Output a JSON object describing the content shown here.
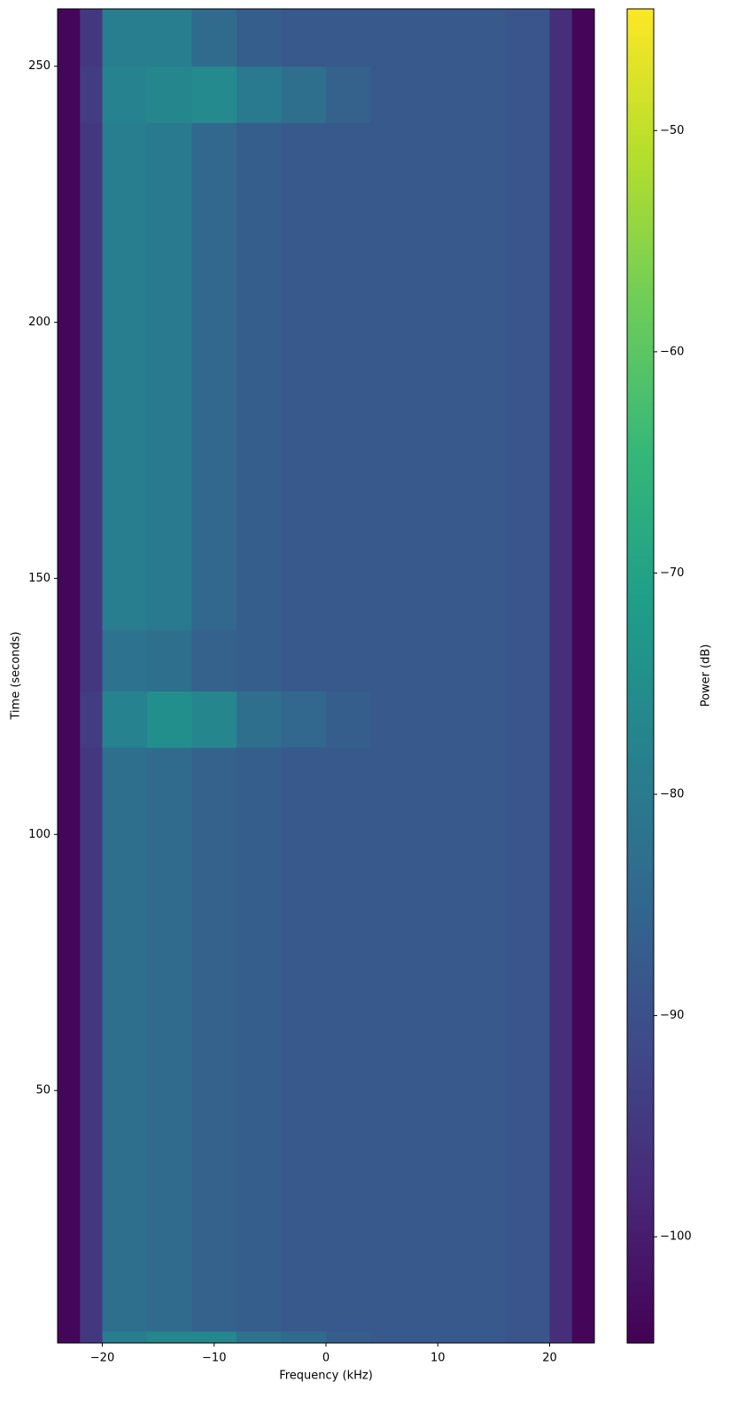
{
  "chart_data": {
    "type": "spectrogram",
    "x_label": "Frequency (kHz)",
    "y_label": "Time (seconds)",
    "colorbar_label": "Power (dB)",
    "colormap": "viridis",
    "xlim": [
      -24,
      24
    ],
    "ylim": [
      0.7,
      261.2
    ],
    "clim": [
      -104.8,
      -44.5
    ],
    "xticks": [
      {
        "value": -20,
        "label": "−20"
      },
      {
        "value": -10,
        "label": "−10"
      },
      0,
      10,
      20
    ],
    "yticks": [
      50,
      100,
      150,
      200,
      250
    ],
    "cticks": [
      {
        "value": -100,
        "label": "−100"
      },
      {
        "value": -90,
        "label": "−90"
      },
      {
        "value": -80,
        "label": "−80"
      },
      {
        "value": -70,
        "label": "−70"
      },
      {
        "value": -60,
        "label": "−60"
      },
      {
        "value": -50,
        "label": "−50"
      }
    ],
    "x_edges": [
      -24,
      -22,
      -20,
      -16,
      -12,
      -8,
      -4,
      0,
      4,
      8,
      12,
      16,
      20,
      22,
      24
    ],
    "y_edges": [
      0.7,
      3,
      117,
      128,
      140,
      239,
      250,
      261.2
    ],
    "values": [
      [
        -104,
        -95,
        -79,
        -77,
        -77,
        -82,
        -84,
        -87,
        -88,
        -88,
        -88,
        -89,
        -97,
        -104
      ],
      [
        -104,
        -95,
        -83,
        -84,
        -86,
        -87,
        -88,
        -88,
        -88,
        -88,
        -88,
        -89,
        -97,
        -104
      ],
      [
        -104,
        -94,
        -78,
        -75,
        -77,
        -83,
        -85,
        -87,
        -88,
        -88,
        -88,
        -89,
        -97,
        -104
      ],
      [
        -104,
        -95,
        -82,
        -83,
        -86,
        -87,
        -88,
        -88,
        -88,
        -88,
        -88,
        -89,
        -97,
        -104
      ],
      [
        -104,
        -95,
        -79,
        -80,
        -85,
        -87,
        -88,
        -88,
        -88,
        -88,
        -88,
        -89,
        -97,
        -104
      ],
      [
        -104,
        -94,
        -78,
        -77,
        -76,
        -80,
        -83,
        -86,
        -88,
        -88,
        -88,
        -89,
        -97,
        -104
      ],
      [
        -104,
        -95,
        -79,
        -79,
        -84,
        -87,
        -88,
        -88,
        -88,
        -88,
        -88,
        -89,
        -97,
        -104
      ]
    ]
  }
}
